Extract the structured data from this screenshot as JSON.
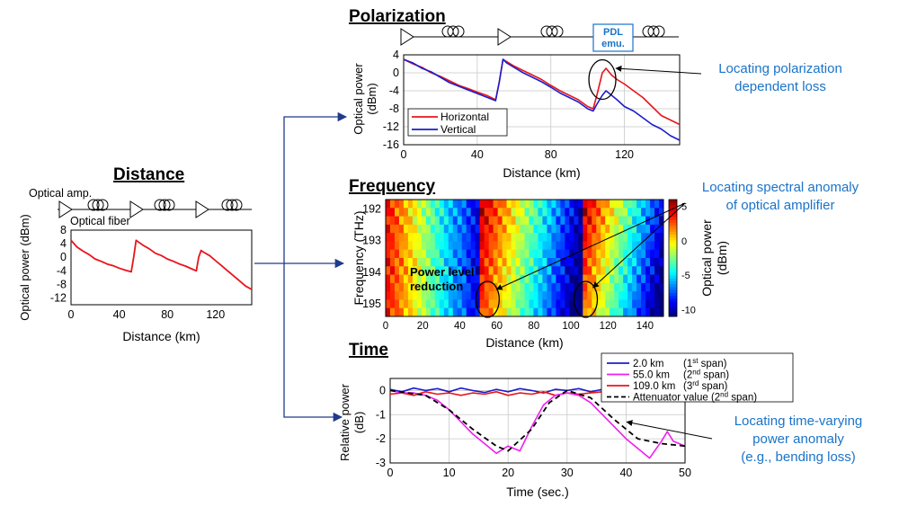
{
  "colors": {
    "red": "#e8141b",
    "blue": "#1c1ccf",
    "magenta": "#f01ef0",
    "annotation": "#1a73c9",
    "arrow": "#1f3b8a"
  },
  "distance": {
    "heading": "Distance",
    "labels": {
      "amp": "Optical amp.",
      "fiber": "Optical fiber"
    },
    "chart_data": {
      "type": "line",
      "xlabel": "Distance (km)",
      "ylabel": "Optical power (dBm)",
      "xlim": [
        0,
        150
      ],
      "ylim": [
        -14,
        8
      ],
      "xticks": [
        0,
        40,
        80,
        120
      ],
      "yticks": [
        8,
        4,
        0,
        -4,
        -8,
        -12
      ],
      "series": [
        {
          "x": [
            0,
            5,
            10,
            15,
            20,
            25,
            30,
            35,
            40,
            45,
            50,
            52,
            54,
            56,
            60,
            65,
            70,
            75,
            80,
            85,
            90,
            95,
            100,
            104,
            106,
            108,
            110,
            115,
            120,
            125,
            130,
            135,
            140,
            145,
            150
          ],
          "y": [
            5,
            3,
            1.8,
            0.8,
            -0.5,
            -1.2,
            -2,
            -2.5,
            -3.2,
            -3.8,
            -4.3,
            0,
            5,
            4.5,
            3.5,
            2.5,
            1.2,
            0.5,
            -0.5,
            -1.2,
            -2,
            -2.6,
            -3.4,
            -4,
            0,
            2,
            1.5,
            0.5,
            -1,
            -2.5,
            -4,
            -5.5,
            -7,
            -8.5,
            -9.5
          ]
        }
      ]
    }
  },
  "polarization": {
    "heading": "Polarization",
    "pdl_label_1": "PDL",
    "pdl_label_2": "emu.",
    "annotation_1": "Locating polarization",
    "annotation_2": "dependent loss",
    "chart_data": {
      "type": "line",
      "xlabel": "Distance (km)",
      "ylabel_1": "Optical power",
      "ylabel_2": "(dBm)",
      "xlim": [
        0,
        150
      ],
      "ylim": [
        -16,
        4
      ],
      "xticks": [
        0,
        40,
        80,
        120
      ],
      "yticks": [
        4,
        0,
        -4,
        -8,
        -12,
        -16
      ],
      "series": [
        {
          "name": "Horizontal",
          "x": [
            0,
            5,
            10,
            15,
            20,
            25,
            30,
            35,
            40,
            45,
            50,
            52,
            54,
            56,
            60,
            65,
            70,
            75,
            80,
            85,
            90,
            95,
            100,
            103,
            105,
            108,
            110,
            113,
            116,
            120,
            125,
            130,
            135,
            140,
            145,
            150
          ],
          "y": [
            3,
            2,
            1.2,
            0,
            -0.8,
            -1.8,
            -2.8,
            -3.5,
            -4.3,
            -5,
            -6,
            -2,
            3,
            2.5,
            1.5,
            0.5,
            -0.5,
            -1.5,
            -2.8,
            -4,
            -5,
            -6,
            -7.5,
            -8,
            -5,
            0,
            1,
            -0.5,
            -1.5,
            -2.5,
            -4,
            -5.5,
            -7.5,
            -9.5,
            -10.5,
            -11.5
          ]
        },
        {
          "name": "Vertical",
          "x": [
            0,
            5,
            10,
            15,
            20,
            25,
            30,
            35,
            40,
            45,
            50,
            52,
            54,
            56,
            60,
            65,
            70,
            75,
            80,
            85,
            90,
            95,
            100,
            103,
            105,
            108,
            110,
            113,
            116,
            120,
            125,
            130,
            135,
            140,
            145,
            150
          ],
          "y": [
            3,
            2.2,
            1,
            0.2,
            -1,
            -2.2,
            -3,
            -3.8,
            -4.6,
            -5.4,
            -6.2,
            -2,
            3,
            2.2,
            1.2,
            0,
            -1,
            -2,
            -3.2,
            -4.5,
            -5.5,
            -6.5,
            -8,
            -8.5,
            -7,
            -5,
            -4,
            -5,
            -6,
            -7.5,
            -8.5,
            -10,
            -11.5,
            -12.5,
            -14,
            -15
          ]
        }
      ]
    }
  },
  "frequency": {
    "heading": "Frequency",
    "power_label_1": "Power level",
    "power_label_2": "reduction",
    "annotation_1": "Locating spectral anomaly",
    "annotation_2": "of optical amplifier",
    "chart_data": {
      "type": "heatmap",
      "xlabel": "Distance (km)",
      "ylabel": "Frequency (THz)",
      "xlim": [
        0,
        150
      ],
      "ylim": [
        191.7,
        195.4
      ],
      "xticks": [
        0,
        20,
        40,
        60,
        80,
        100,
        120,
        140
      ],
      "yticks": [
        192,
        193,
        194,
        195
      ],
      "colorbar": {
        "label_1": "Optical power",
        "label_2": "(dBm)",
        "ticks": [
          5,
          0,
          -5,
          -10
        ],
        "range": [
          -11,
          6
        ]
      }
    }
  },
  "time": {
    "heading": "Time",
    "annotation_1": "Locating time-varying",
    "annotation_2": "power anomaly",
    "annotation_3": "(e.g., bending loss)",
    "chart_data": {
      "type": "line",
      "xlabel": "Time (sec.)",
      "ylabel_1": "Relative power",
      "ylabel_2": "(dB)",
      "xlim": [
        0,
        50
      ],
      "ylim": [
        -3,
        0.5
      ],
      "xticks": [
        0,
        10,
        20,
        30,
        40,
        50
      ],
      "yticks": [
        0,
        -1,
        -2,
        -3
      ],
      "legend": [
        {
          "text": "2.0 km",
          "span": "(1",
          "sup": "st",
          "tail": " span)"
        },
        {
          "text": "55.0 km",
          "span": "(2",
          "sup": "nd",
          "tail": " span)"
        },
        {
          "text": "109.0 km",
          "span": "(3",
          "sup": "rd",
          "tail": " span)"
        },
        {
          "text": "Attenuator value (2",
          "sup": "nd",
          "tail": " span)"
        }
      ],
      "series": [
        {
          "name": "2.0 km",
          "x": [
            0,
            2,
            4,
            6,
            8,
            10,
            12,
            14,
            16,
            18,
            20,
            22,
            24,
            26,
            28,
            30,
            32,
            34,
            36,
            38,
            40,
            42,
            44,
            46,
            48,
            50
          ],
          "y": [
            0.05,
            -0.05,
            0.1,
            0,
            0.08,
            -0.05,
            0.1,
            0,
            -0.08,
            0.05,
            -0.05,
            0.08,
            0,
            -0.1,
            0.05,
            0,
            0.08,
            -0.05,
            0.05,
            0,
            -0.05,
            0.08,
            0,
            -0.08,
            0.05,
            0
          ]
        },
        {
          "name": "55.0 km",
          "x": [
            0,
            2,
            4,
            6,
            8,
            10,
            12,
            14,
            16,
            18,
            20,
            22,
            24,
            26,
            28,
            30,
            32,
            34,
            36,
            38,
            40,
            42,
            44,
            46,
            47,
            48,
            50
          ],
          "y": [
            0,
            -0.1,
            -0.1,
            -0.2,
            -0.4,
            -0.8,
            -1.3,
            -1.8,
            -2.2,
            -2.6,
            -2.3,
            -2.5,
            -1.5,
            -0.6,
            -0.2,
            -0.1,
            -0.2,
            -0.5,
            -1,
            -1.5,
            -2.0,
            -2.4,
            -2.8,
            -2.1,
            -1.7,
            -2.1,
            -2.3
          ]
        },
        {
          "name": "109.0 km",
          "x": [
            0,
            2,
            4,
            6,
            8,
            10,
            12,
            14,
            16,
            18,
            20,
            22,
            24,
            26,
            28,
            30,
            32,
            34,
            36,
            38,
            40,
            42,
            44,
            46,
            48,
            50
          ],
          "y": [
            -0.15,
            -0.1,
            -0.2,
            -0.05,
            -0.15,
            -0.1,
            -0.2,
            -0.1,
            -0.15,
            -0.05,
            -0.2,
            -0.1,
            -0.15,
            -0.05,
            -0.2,
            -0.1,
            -0.15,
            -0.1,
            -0.05,
            -0.2,
            -0.1,
            -0.15,
            -0.05,
            -0.2,
            -0.1,
            -0.15
          ]
        },
        {
          "name": "Attenuator value",
          "x": [
            0,
            6,
            10,
            14,
            18,
            20,
            24,
            27,
            30,
            34,
            38,
            42,
            46,
            50
          ],
          "y": [
            0,
            -0.2,
            -0.8,
            -1.6,
            -2.3,
            -2.5,
            -1.6,
            -0.5,
            0,
            -0.3,
            -1.2,
            -2.0,
            -2.2,
            -2.3
          ]
        }
      ]
    }
  }
}
